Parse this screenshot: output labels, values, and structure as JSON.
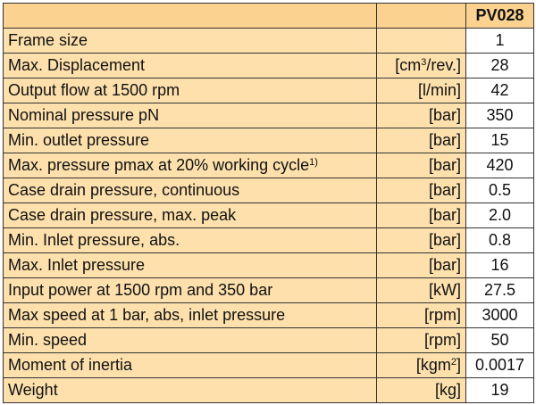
{
  "table": {
    "header": {
      "parameter": "",
      "unit": "",
      "model": "PV028"
    },
    "rows": [
      {
        "parameter": "Frame size",
        "unit": "",
        "value": "1"
      },
      {
        "parameter": "Max. Displacement",
        "unit_pre": "[cm",
        "unit_sup": "3",
        "unit_post": "/rev.]",
        "value": "28"
      },
      {
        "parameter": "Output flow at 1500 rpm",
        "unit": "[l/min]",
        "value": "42"
      },
      {
        "parameter": "Nominal pressure pN",
        "unit": "[bar]",
        "value": "350"
      },
      {
        "parameter": "Min. outlet pressure",
        "unit": "[bar]",
        "value": "15"
      },
      {
        "parameter": "Max. pressure pmax at 20% working cycle",
        "footnote": "1)",
        "unit": "[bar]",
        "value": "420"
      },
      {
        "parameter": "Case drain pressure, continuous",
        "unit": "[bar]",
        "value": "0.5"
      },
      {
        "parameter": "Case drain pressure, max. peak",
        "unit": "[bar]",
        "value": "2.0"
      },
      {
        "parameter": "Min. Inlet pressure, abs.",
        "unit": "[bar]",
        "value": "0.8"
      },
      {
        "parameter": "Max. Inlet pressure",
        "unit": "[bar]",
        "value": "16"
      },
      {
        "parameter": "Input power at 1500 rpm and 350 bar",
        "unit": "[kW]",
        "value": "27.5"
      },
      {
        "parameter": "Max speed at 1 bar, abs, inlet pressure",
        "unit": "[rpm]",
        "value": "3000"
      },
      {
        "parameter": "Min. speed",
        "unit": "[rpm]",
        "value": "50"
      },
      {
        "parameter": "Moment of inertia",
        "unit_pre": "[kgm",
        "unit_sup": "2",
        "unit_post": "]",
        "value": "0.0017"
      },
      {
        "parameter": "Weight",
        "unit": "[kg]",
        "value": "19"
      }
    ]
  },
  "colors": {
    "label_background": "#fde0ac",
    "header_background": "#fbd28f",
    "value_background": "#ffffff",
    "border": "#333333"
  }
}
